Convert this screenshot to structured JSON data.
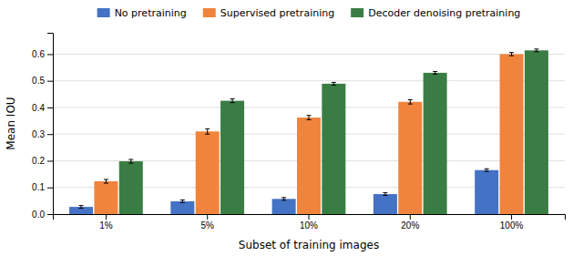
{
  "chart_data": {
    "type": "bar",
    "xlabel": "Subset of training images",
    "ylabel": "Mean IOU",
    "categories": [
      "1%",
      "5%",
      "10%",
      "20%",
      "100%"
    ],
    "series": [
      {
        "name": "No pretraining",
        "color": "#4472c4",
        "values": [
          0.027,
          0.048,
          0.057,
          0.075,
          0.165
        ],
        "errors": [
          0.005,
          0.005,
          0.005,
          0.005,
          0.005
        ]
      },
      {
        "name": "Supervised pretraining",
        "color": "#f0843c",
        "values": [
          0.123,
          0.31,
          0.362,
          0.421,
          0.6
        ],
        "errors": [
          0.007,
          0.01,
          0.008,
          0.008,
          0.006
        ]
      },
      {
        "name": "Decoder denoising pretraining",
        "color": "#3a7d44",
        "values": [
          0.198,
          0.425,
          0.489,
          0.53,
          0.614
        ],
        "errors": [
          0.007,
          0.007,
          0.005,
          0.005,
          0.005
        ]
      }
    ],
    "ylim": [
      0.0,
      0.68
    ],
    "yticks": [
      {
        "value": 0.0,
        "label": "0.0"
      },
      0.1,
      0.2,
      0.3,
      0.4,
      0.5,
      0.6
    ],
    "grid": true,
    "legend": "top"
  }
}
